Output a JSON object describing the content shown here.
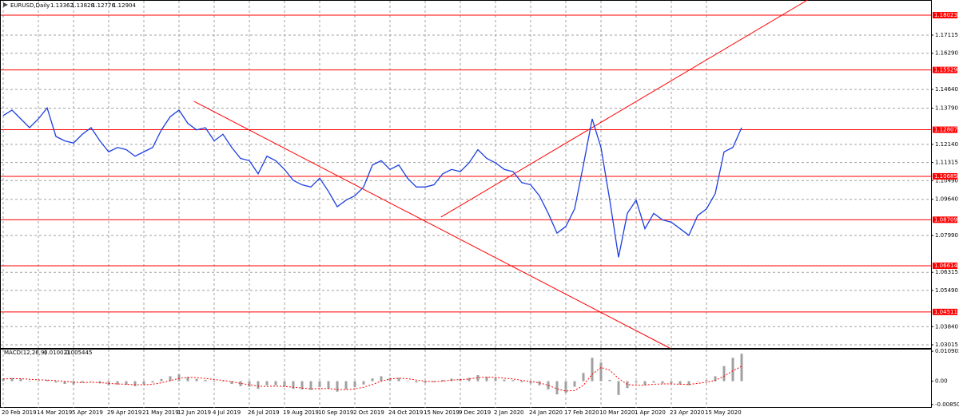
{
  "chart_data": {
    "type": "line",
    "title": "EURUSD,Daily",
    "header_values": [
      1.13362,
      1.13828,
      1.12776,
      1.12904
    ],
    "categories": [
      "20 Feb 2019",
      null,
      null,
      null,
      "14 Mar 2019",
      null,
      null,
      null,
      "5 Apr 2019",
      null,
      null,
      null,
      "29 Apr 2019",
      null,
      null,
      null,
      "21 May 2019",
      null,
      null,
      null,
      "12 Jun 2019",
      null,
      null,
      null,
      "4 Jul 2019",
      null,
      null,
      null,
      "26 Jul 2019",
      null,
      null,
      null,
      "19 Aug 2019",
      null,
      null,
      null,
      "10 Sep 2019",
      null,
      null,
      null,
      "2 Oct 2019",
      null,
      null,
      null,
      "24 Oct 2019",
      null,
      null,
      null,
      "15 Nov 2019",
      null,
      null,
      null,
      "9 Dec 2019",
      null,
      null,
      null,
      "2 Jan 2020",
      null,
      null,
      null,
      "24 Jan 2020",
      null,
      null,
      null,
      "17 Feb 2020",
      null,
      null,
      null,
      "10 Mar 2020",
      null,
      null,
      null,
      "1 Apr 2020",
      null,
      null,
      null,
      "23 Apr 2020",
      null,
      null,
      null,
      "15 May 2020",
      null,
      null,
      null,
      null
    ],
    "values": [
      1.1345,
      1.137,
      1.133,
      1.129,
      1.133,
      1.138,
      1.125,
      1.123,
      1.122,
      1.126,
      1.129,
      1.123,
      1.118,
      1.12,
      1.119,
      1.116,
      1.118,
      1.12,
      1.128,
      1.134,
      1.137,
      1.131,
      1.128,
      1.129,
      1.123,
      1.126,
      1.12,
      1.115,
      1.114,
      1.108,
      1.116,
      1.114,
      1.11,
      1.105,
      1.103,
      1.102,
      1.106,
      1.1,
      1.093,
      1.096,
      1.098,
      1.102,
      1.112,
      1.114,
      1.11,
      1.112,
      1.106,
      1.102,
      1.102,
      1.103,
      1.108,
      1.11,
      1.109,
      1.113,
      1.119,
      1.115,
      1.113,
      1.11,
      1.109,
      1.104,
      1.103,
      1.098,
      1.09,
      1.081,
      1.084,
      1.092,
      1.112,
      1.133,
      1.12,
      1.096,
      1.07,
      1.09,
      1.096,
      1.083,
      1.09,
      1.087,
      1.086,
      1.083,
      1.08,
      1.089,
      1.092,
      1.099,
      1.118,
      1.12,
      1.129
    ],
    "color": "#1c3fe0",
    "ylim": [
      1.0287,
      1.18714
    ],
    "yticks": [
      1.17115,
      {
        "value": 1.1629,
        "label": "1.16290"
      },
      {
        "value": 1.1464,
        "label": "1.14640"
      },
      {
        "value": 1.1379,
        "label": "1.13790"
      },
      {
        "value": 1.1214,
        "label": "1.12140"
      },
      1.11315,
      {
        "value": 1.1049,
        "label": "1.10490"
      },
      {
        "value": 1.0964,
        "label": "1.09640"
      },
      {
        "value": 1.0799,
        "label": "1.07990"
      },
      1.06315,
      {
        "value": 1.0549,
        "label": "1.05490"
      },
      {
        "value": 1.0384,
        "label": "1.03840"
      },
      1.03015
    ],
    "grid": true,
    "levels": {
      "values": [
        1.18023,
        1.15529,
        1.12807,
        1.10685,
        1.08709,
        1.06614,
        1.04511
      ],
      "color": "#ff0000"
    },
    "trendlines": [
      {
        "x": [
          21.7,
          75.8
        ],
        "y": [
          1.141,
          1.0287
        ]
      },
      {
        "x": [
          49.8,
          91.5
        ],
        "y": [
          1.0883,
          1.18714
        ]
      }
    ],
    "macd": {
      "label": "MACD(12,26,9)",
      "main": 0.010021,
      "signal": 0.005445,
      "ylim": [
        -0.0097,
        0.0118
      ],
      "yticks": [
        0.010903,
        {
          "value": 0,
          "label": "0.00"
        },
        -0.008506
      ],
      "histogram_color": "#a0a0a0",
      "signal_color": "#ff0000",
      "histogram": [
        0.001,
        0.0012,
        0.0008,
        0.0002,
        -0.0002,
        0.0005,
        -0.0005,
        -0.001,
        -0.0012,
        -0.0005,
        0.0,
        -0.0008,
        -0.0015,
        -0.0012,
        -0.0013,
        -0.0018,
        -0.0012,
        -0.0005,
        0.0008,
        0.0018,
        0.0025,
        0.0015,
        0.0008,
        0.0005,
        -0.0003,
        -0.0002,
        -0.001,
        -0.0018,
        -0.002,
        -0.0028,
        -0.0015,
        -0.0015,
        -0.002,
        -0.0028,
        -0.003,
        -0.0032,
        -0.0022,
        -0.0028,
        -0.0038,
        -0.003,
        -0.0022,
        -0.0012,
        0.001,
        0.0018,
        0.0012,
        0.0012,
        0.0002,
        -0.0005,
        -0.0006,
        -0.0004,
        0.0005,
        0.0009,
        0.0008,
        0.0012,
        0.0022,
        0.0016,
        0.0012,
        0.0006,
        0.0004,
        -0.0004,
        -0.0008,
        -0.0015,
        -0.003,
        -0.0048,
        -0.0042,
        -0.002,
        0.003,
        0.0085,
        0.0068,
        0.0005,
        -0.005,
        -0.0025,
        -0.0005,
        -0.0015,
        -0.0005,
        -0.0008,
        -0.0008,
        -0.0012,
        -0.0015,
        0.0,
        0.0005,
        0.0018,
        0.0055,
        0.0085,
        0.01
      ],
      "signal_line": [
        0.0008,
        0.0009,
        0.0009,
        0.0007,
        0.0005,
        0.0004,
        0.0002,
        -0.0001,
        -0.0004,
        -0.0005,
        -0.0004,
        -0.0005,
        -0.0008,
        -0.001,
        -0.0011,
        -0.0013,
        -0.0013,
        -0.0011,
        -0.0006,
        0.0002,
        0.001,
        0.0014,
        0.0013,
        0.001,
        0.0006,
        0.0003,
        -0.0002,
        -0.0008,
        -0.0013,
        -0.0018,
        -0.0019,
        -0.0018,
        -0.0019,
        -0.0022,
        -0.0025,
        -0.0028,
        -0.0027,
        -0.0027,
        -0.003,
        -0.0031,
        -0.0028,
        -0.0022,
        -0.0012,
        0.0,
        0.0008,
        0.0011,
        0.0009,
        0.0004,
        0.0,
        -0.0002,
        0.0,
        0.0004,
        0.0006,
        0.0008,
        0.0013,
        0.0015,
        0.0014,
        0.0011,
        0.0008,
        0.0003,
        -0.0001,
        -0.0006,
        -0.0015,
        -0.0028,
        -0.0036,
        -0.0034,
        -0.0015,
        0.0025,
        0.005,
        0.004,
        0.001,
        -0.0012,
        -0.0015,
        -0.0014,
        -0.0011,
        -0.001,
        -0.001,
        -0.0011,
        -0.0012,
        -0.0008,
        -0.0004,
        0.0003,
        0.0018,
        0.0038,
        0.0054
      ]
    }
  }
}
